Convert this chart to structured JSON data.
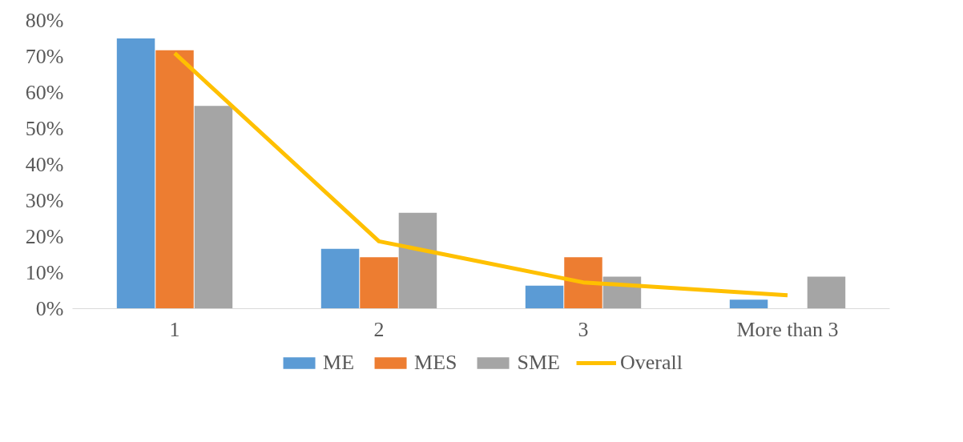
{
  "chart_data": {
    "type": "bar",
    "categories": [
      "1",
      "2",
      "3",
      "More than 3"
    ],
    "series": [
      {
        "name": "ME",
        "color": "#5b9bd5",
        "values": [
          75.0,
          16.6,
          6.4,
          2.5
        ]
      },
      {
        "name": "MES",
        "color": "#ed7d31",
        "values": [
          71.7,
          14.3,
          14.3,
          0
        ]
      },
      {
        "name": "SME",
        "color": "#a5a5a5",
        "values": [
          56.3,
          26.6,
          8.9,
          8.9
        ]
      },
      {
        "name": "Overall",
        "color": "#ffc000",
        "type": "line",
        "values": [
          70.9,
          18.7,
          7.3,
          3.7
        ]
      }
    ],
    "ylim": [
      0,
      80
    ],
    "yticks": [
      {
        "value": 0,
        "label": "0%"
      },
      {
        "value": 10,
        "label": "10%"
      },
      {
        "value": 20,
        "label": "20%"
      },
      {
        "value": 30,
        "label": "30%"
      },
      {
        "value": 40,
        "label": "40%"
      },
      {
        "value": 50,
        "label": "50%"
      },
      {
        "value": 60,
        "label": "60%"
      },
      {
        "value": 70,
        "label": "70%"
      },
      {
        "value": 80,
        "label": "80%"
      }
    ],
    "grid": false,
    "legend": "bottom",
    "marker": "none"
  }
}
